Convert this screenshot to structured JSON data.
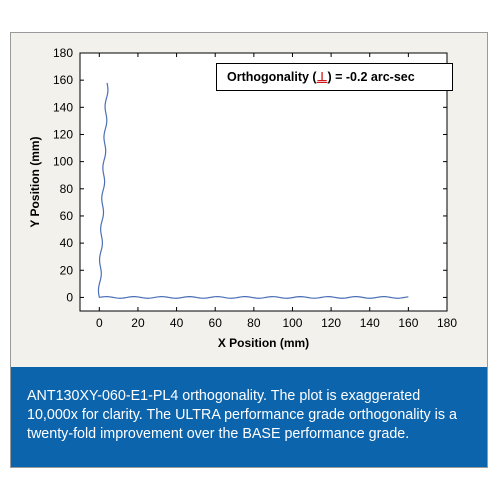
{
  "chart_data": {
    "type": "line",
    "title": "",
    "xlabel": "X Position (mm)",
    "ylabel": "Y Position (mm)",
    "xlim": [
      -10,
      180
    ],
    "ylim": [
      -10,
      180
    ],
    "xticks": [
      0,
      20,
      40,
      60,
      80,
      100,
      120,
      140,
      160,
      180
    ],
    "yticks": [
      0,
      20,
      40,
      60,
      80,
      100,
      120,
      140,
      160,
      180
    ],
    "grid": false,
    "line_color": "#4a6fb5",
    "annotation": {
      "prefix": "Orthogonality (",
      "symbol": "⊥",
      "suffix": ") = -0.2 arc-sec",
      "symbol_color": "#d0161c"
    },
    "series": [
      {
        "x_segment": {
          "x": [
            0,
            20,
            40,
            60,
            80,
            100,
            120,
            140,
            160
          ],
          "y": [
            0,
            0,
            0,
            0,
            0,
            0,
            0,
            0,
            0
          ]
        },
        "y_segment": {
          "x": [
            0,
            1,
            2,
            3,
            4
          ],
          "y": [
            0,
            40,
            80,
            120,
            158
          ]
        }
      }
    ]
  },
  "caption": "ANT130XY-060-E1-PL4 orthogonality. The plot is exaggerated 10,000x for clarity. The ULTRA performance grade orthogonality is a twenty-fold improvement over the BASE performance grade.",
  "colors": {
    "caption_background": "#0c64ad",
    "frame_background": "#f3f1ec"
  }
}
